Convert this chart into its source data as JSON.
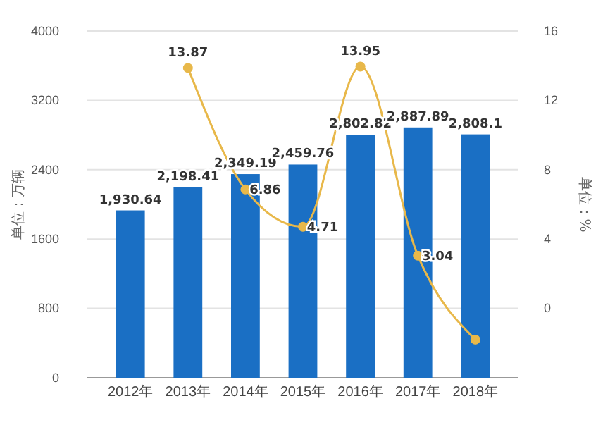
{
  "chart_data": {
    "type": "bar",
    "categories": [
      "2012年",
      "2013年",
      "2014年",
      "2015年",
      "2016年",
      "2017年",
      "2018年"
    ],
    "ylabel": "单位：万辆",
    "y2label": "单位：%",
    "ylim": [
      0,
      4000
    ],
    "yticks": [
      0,
      800,
      1600,
      2400,
      3200,
      4000
    ],
    "y2lim": [
      -4,
      16
    ],
    "y2ticks": [
      0,
      4,
      8,
      12,
      16
    ],
    "grid": "y",
    "series": [
      {
        "color": "#1a6fc4",
        "values": [
          1930.64,
          2198.41,
          2349.19,
          2459.76,
          2802.82,
          2887.89,
          2808.1
        ],
        "value_labels": [
          "1,930.64",
          "2,198.41",
          "2,349.19",
          "2,459.76",
          "2,802.82",
          "2,887.89",
          "2,808.1"
        ]
      },
      {
        "type": "line",
        "axis": "y2",
        "color": "#e8b84a",
        "marker": "circle",
        "values": [
          null,
          13.87,
          6.86,
          4.71,
          13.95,
          3.04,
          -1.8
        ],
        "value_labels": [
          null,
          "13.87",
          "6.86",
          "4.71",
          "13.95",
          "3.04",
          null
        ]
      }
    ]
  }
}
